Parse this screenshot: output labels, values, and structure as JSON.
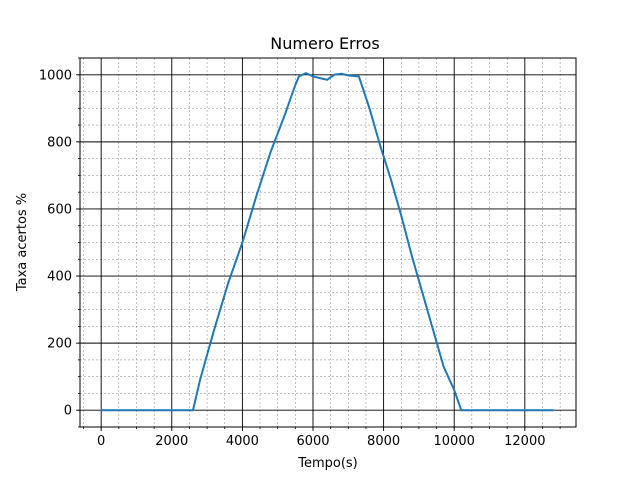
{
  "chart_data": {
    "type": "line",
    "title": "Numero Erros",
    "xlabel": "Tempo(s)",
    "ylabel": "Taxa acertos %",
    "xlim": [
      -600,
      13450
    ],
    "ylim": [
      -50,
      1050
    ],
    "xticks": [
      0,
      2000,
      4000,
      6000,
      8000,
      10000,
      12000
    ],
    "yticks": [
      0,
      200,
      400,
      600,
      800,
      1000
    ],
    "x_minor_step": 500,
    "y_minor_step": 50,
    "grid": true,
    "colors": {
      "line": "#1f77b4",
      "major_grid": "#000000",
      "minor_grid": "#808080"
    },
    "series": [
      {
        "x": [
          0,
          2600,
          2800,
          3200,
          3600,
          4000,
          4400,
          4800,
          5200,
          5500,
          5600,
          5800,
          6000,
          6200,
          6400,
          6600,
          6800,
          7000,
          7300,
          7600,
          7900,
          8200,
          8500,
          8800,
          9100,
          9400,
          9700,
          10000,
          10200,
          10400,
          11000,
          12800
        ],
        "y": [
          0,
          0,
          90,
          240,
          380,
          500,
          640,
          770,
          880,
          970,
          995,
          1005,
          995,
          990,
          985,
          1000,
          1003,
          998,
          995,
          900,
          790,
          690,
          580,
          460,
          350,
          240,
          130,
          60,
          0,
          0,
          0,
          0
        ]
      }
    ]
  }
}
